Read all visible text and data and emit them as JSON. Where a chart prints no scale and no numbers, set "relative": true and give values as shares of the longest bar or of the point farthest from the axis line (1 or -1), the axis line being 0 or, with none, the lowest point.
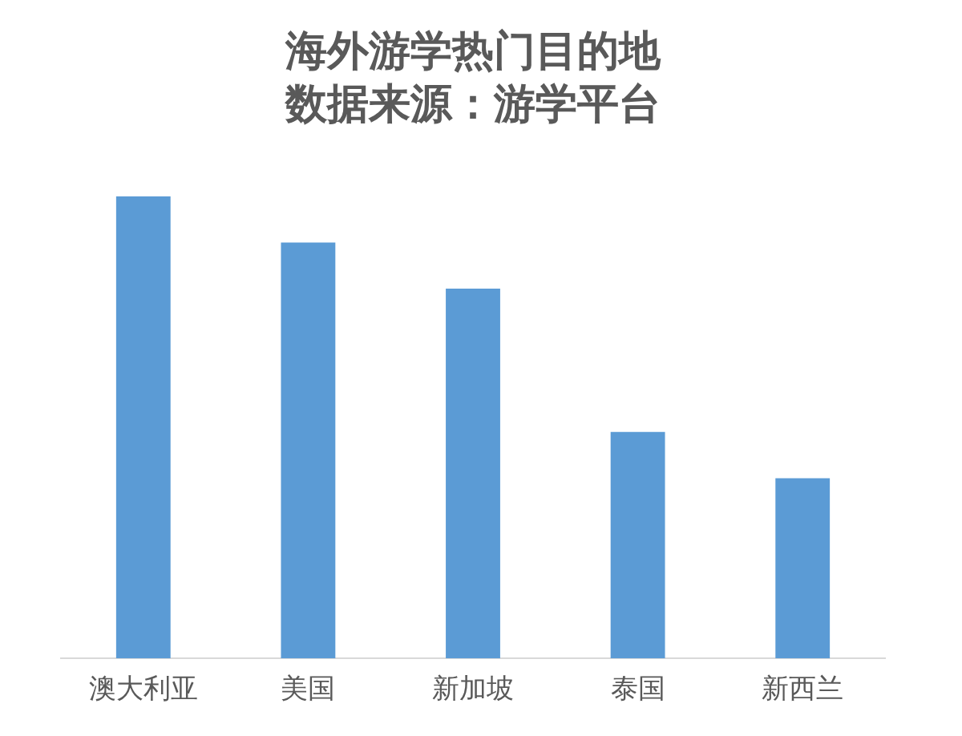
{
  "chart_data": {
    "type": "bar",
    "title": "海外游学热门目的地",
    "subtitle": "数据来源：游学平台",
    "categories": [
      "澳大利亚",
      "美国",
      "新加坡",
      "泰国",
      "新西兰"
    ],
    "values": [
      1,
      0.9,
      0.8,
      0.49,
      0.39
    ],
    "color": "#5b9bd5",
    "relative": true,
    "grid": false,
    "legend": false
  }
}
